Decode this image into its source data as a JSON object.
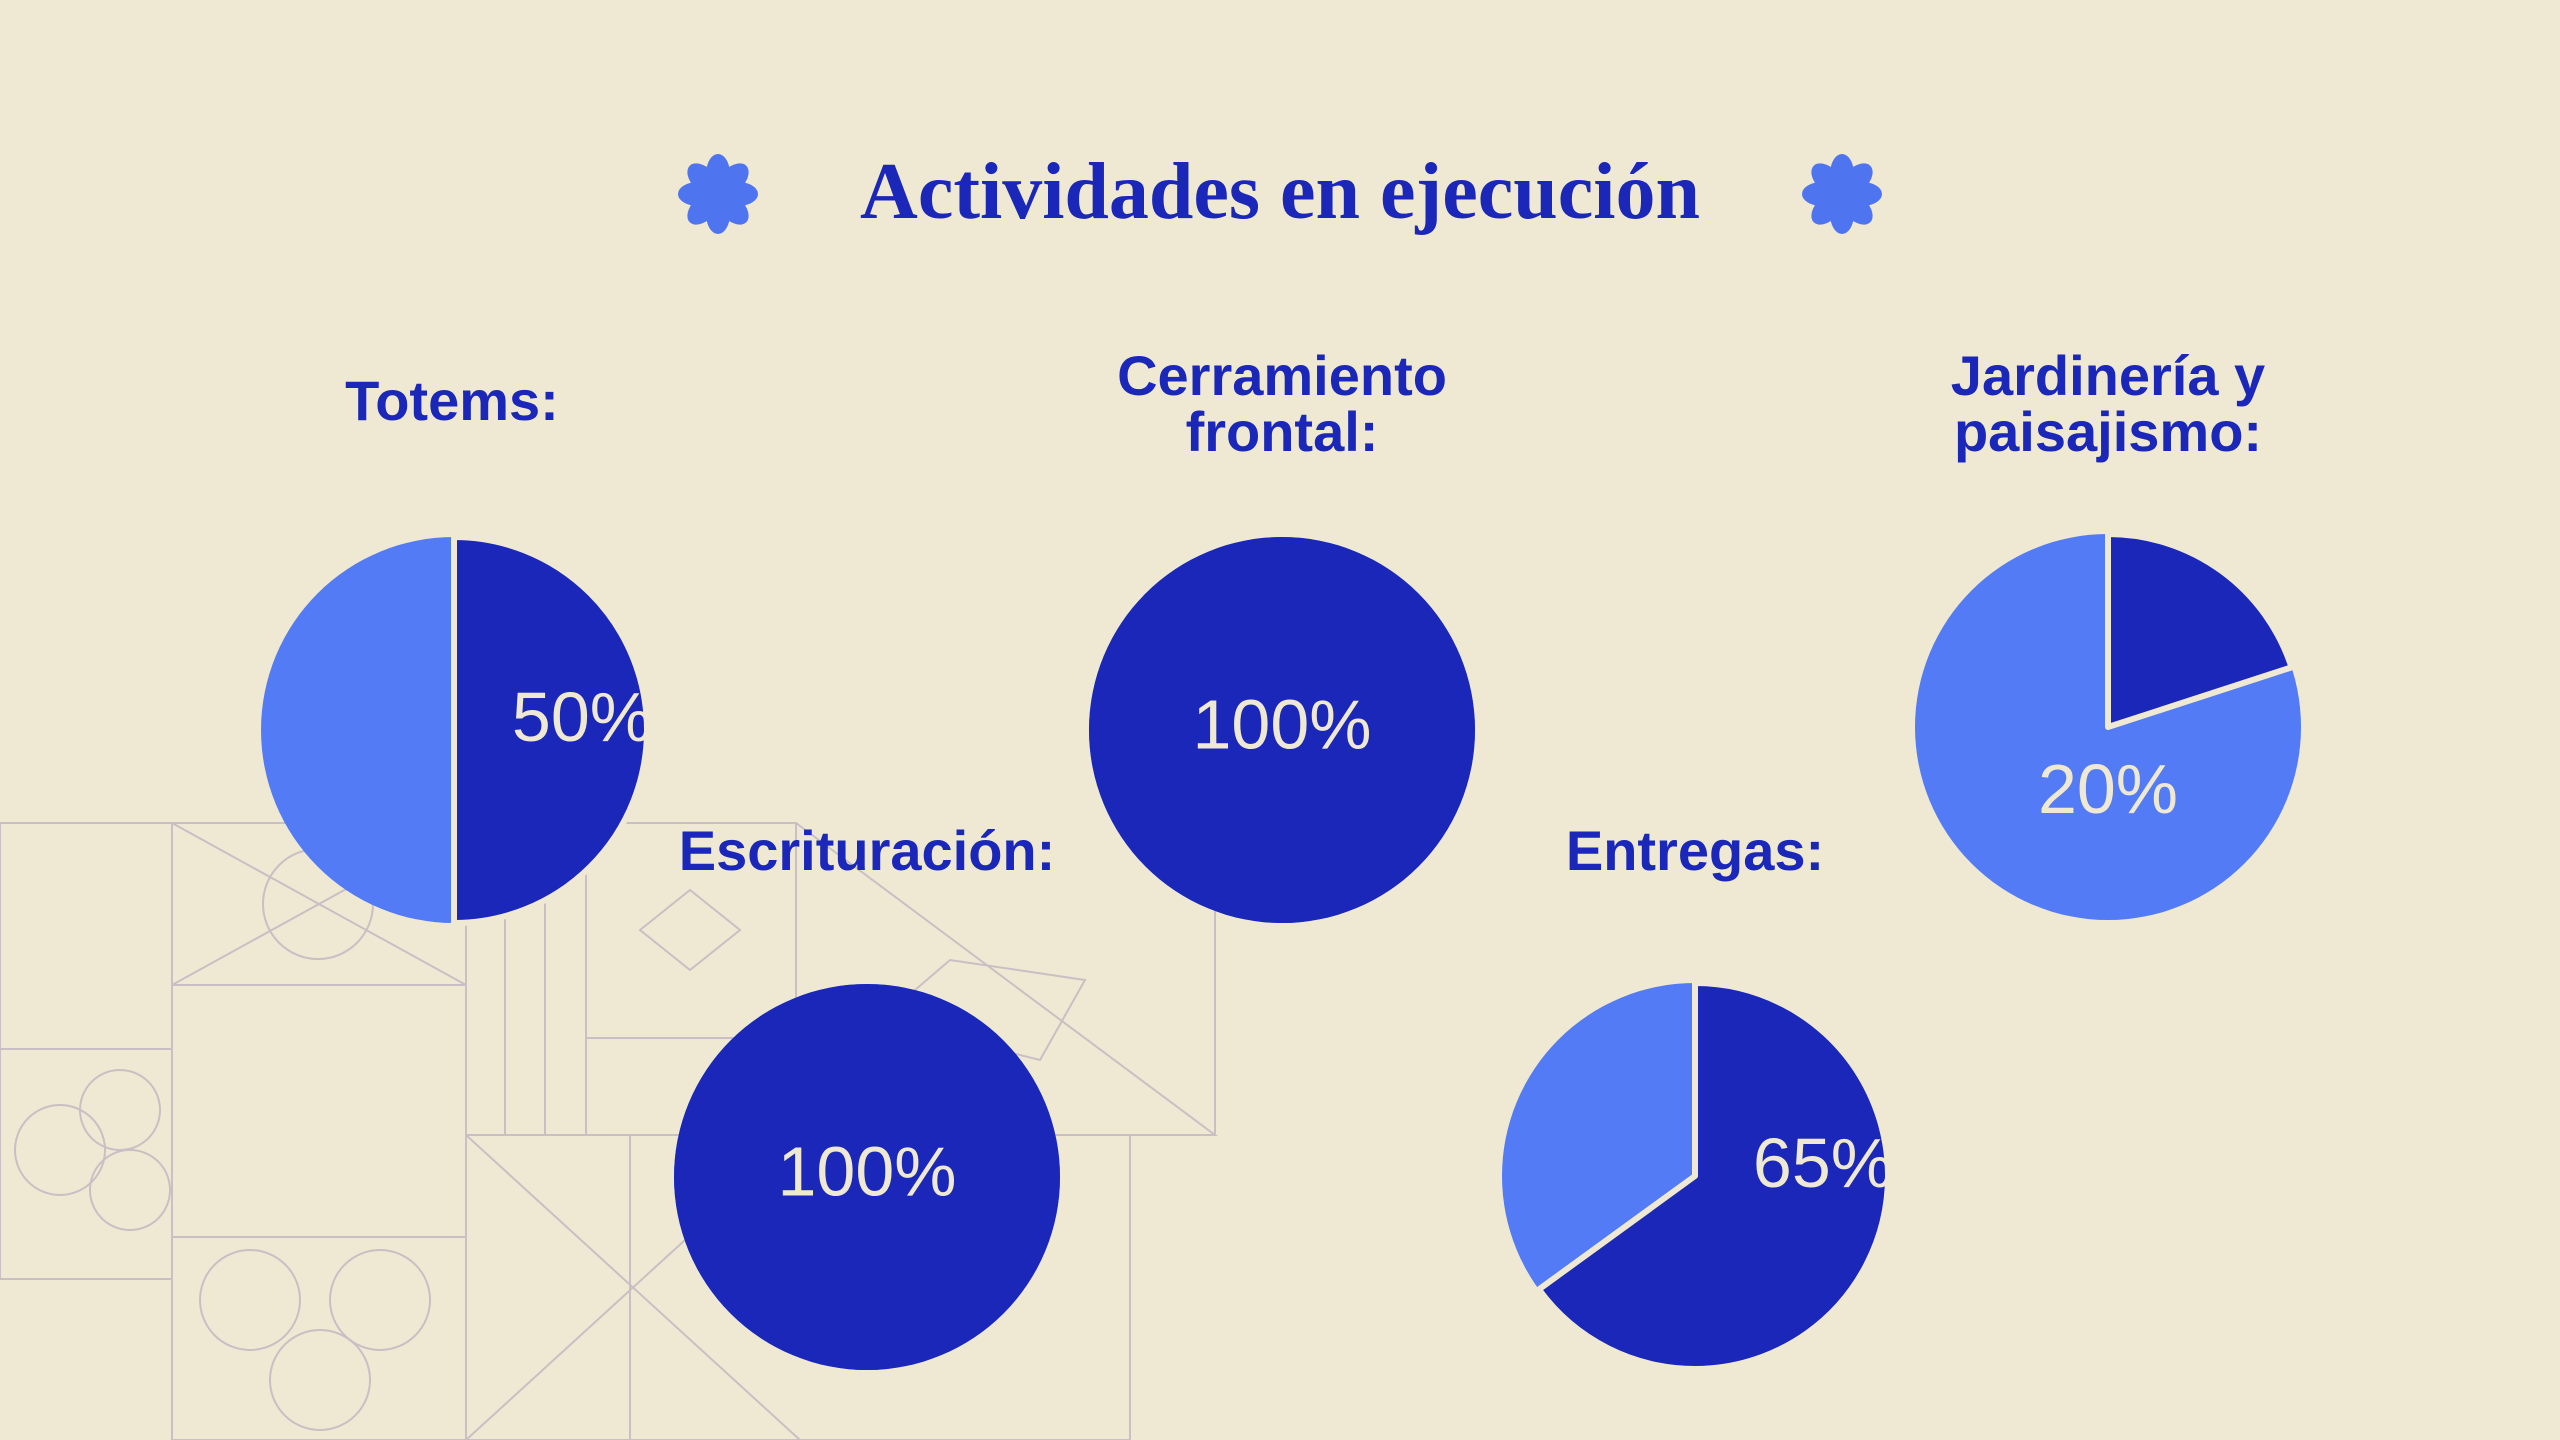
{
  "title": "Actividades en ejecución",
  "chart_data": [
    {
      "type": "pie",
      "title": [
        "Totems:"
      ],
      "values": [
        50
      ],
      "value_labels": [
        "50%"
      ],
      "color": "#1a27b8",
      "rest_color": "#527bf5"
    },
    {
      "type": "pie",
      "title": [
        "Cerramiento",
        "frontal:"
      ],
      "values": [
        100
      ],
      "value_labels": [
        "100%"
      ],
      "color": "#1a27b8",
      "rest_color": "#527bf5"
    },
    {
      "type": "pie",
      "title": [
        "Jardinería y",
        "paisajismo:"
      ],
      "values": [
        20
      ],
      "value_labels": [
        "20%"
      ],
      "color": "#1a27b8",
      "rest_color": "#527bf5"
    },
    {
      "type": "pie",
      "title": [
        "Escrituración:"
      ],
      "values": [
        100
      ],
      "value_labels": [
        "100%"
      ],
      "color": "#1a27b8",
      "rest_color": "#527bf5"
    },
    {
      "type": "pie",
      "title": [
        "Entregas:"
      ],
      "values": [
        65
      ],
      "value_labels": [
        "65%"
      ],
      "color": "#1a27b8",
      "rest_color": "#527bf5"
    }
  ]
}
